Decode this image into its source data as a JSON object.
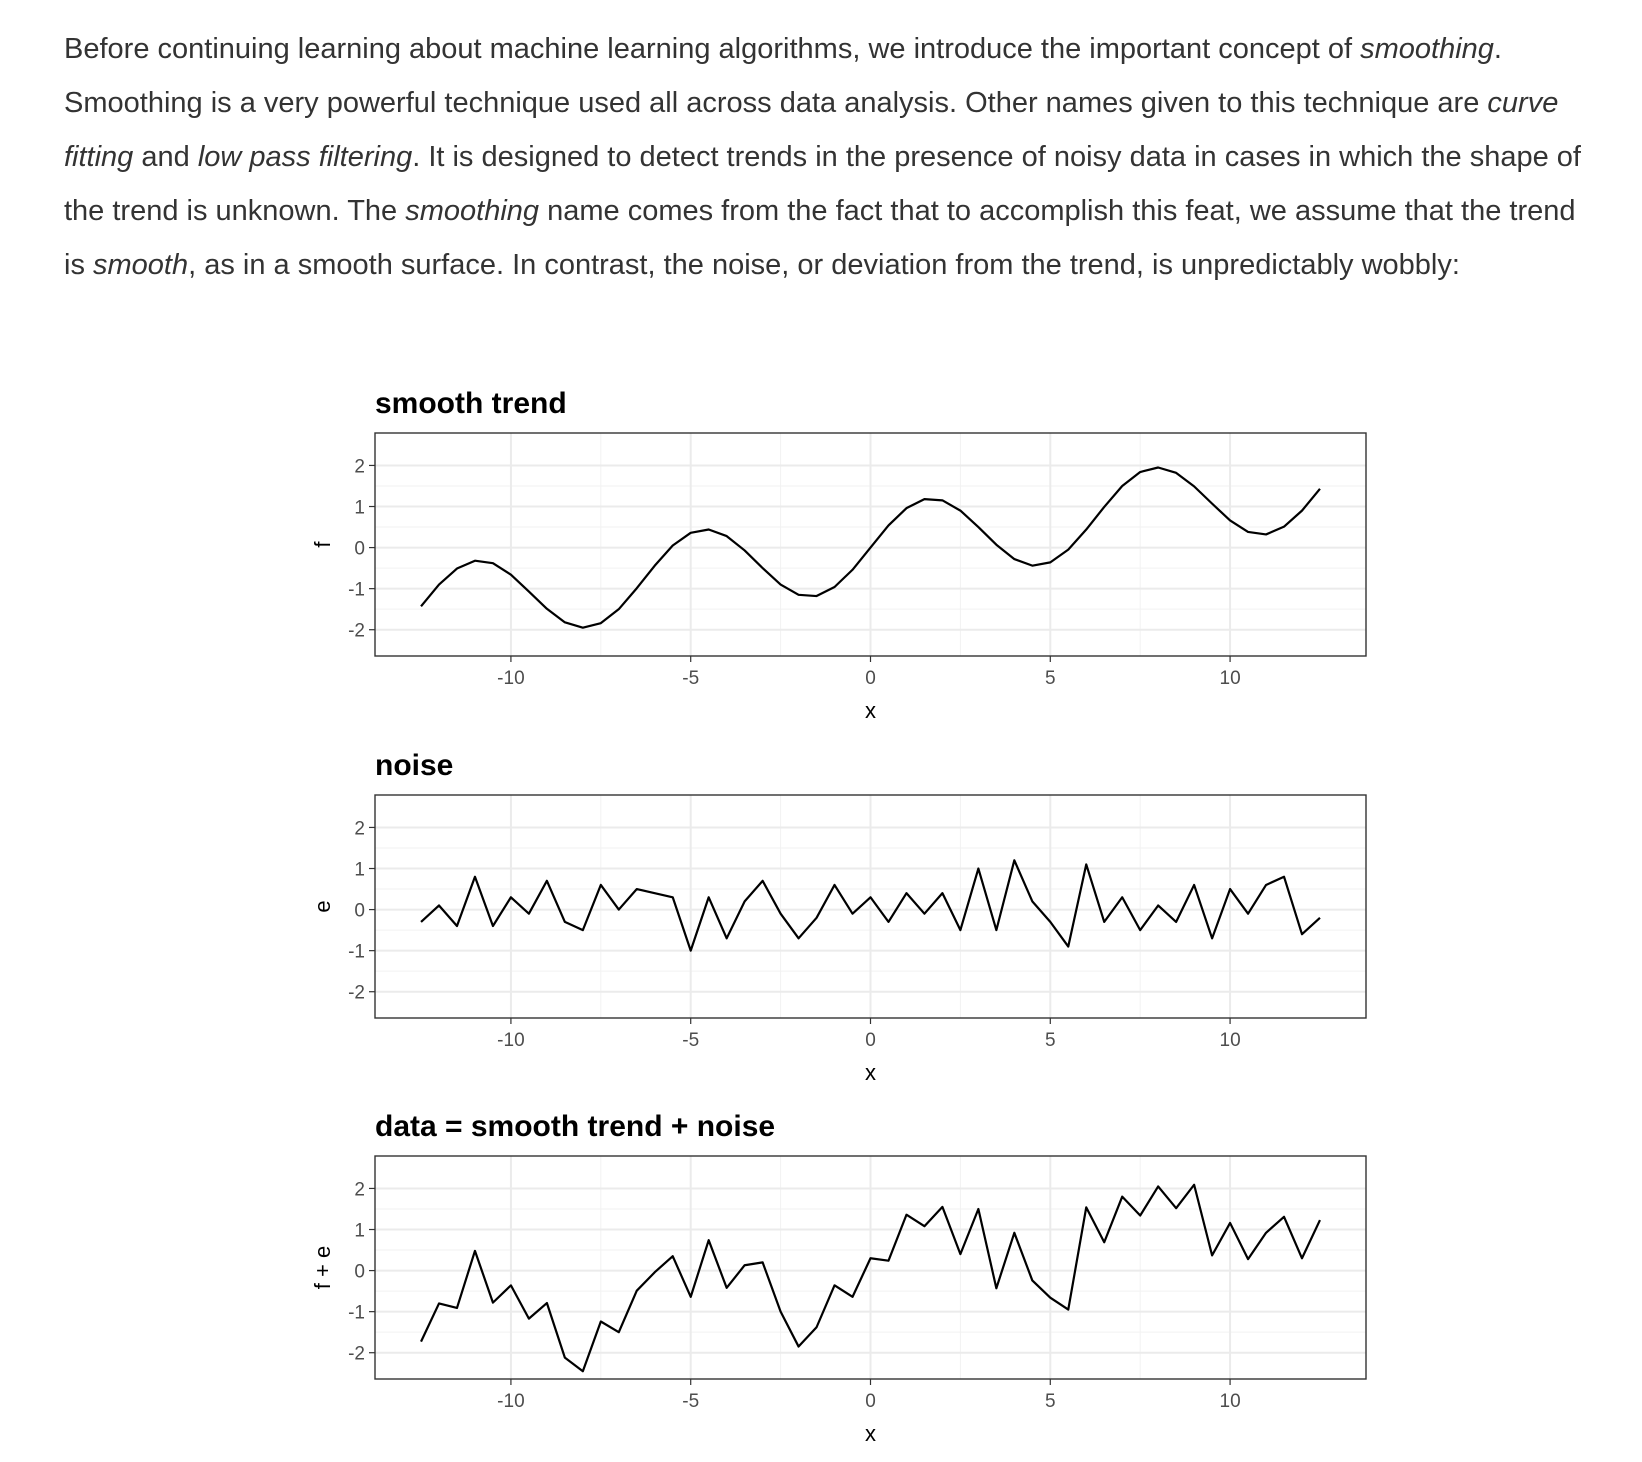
{
  "paragraph": [
    {
      "text": "Before continuing learning about machine learning algorithms, we introduce the important concept of ",
      "italic": false
    },
    {
      "text": "smoothing",
      "italic": true
    },
    {
      "text": ". Smoothing is a very powerful technique used all across data analysis. Other names given to this technique are ",
      "italic": false
    },
    {
      "text": "curve fitting",
      "italic": true
    },
    {
      "text": " and ",
      "italic": false
    },
    {
      "text": "low pass filtering",
      "italic": true
    },
    {
      "text": ". It is designed to detect trends in the presence of noisy data in cases in which the shape of the trend is unknown. The ",
      "italic": false
    },
    {
      "text": "smoothing",
      "italic": true
    },
    {
      "text": " name comes from the fact that to accomplish this feat, we assume that the trend is ",
      "italic": false
    },
    {
      "text": "smooth",
      "italic": true
    },
    {
      "text": ", as in a smooth surface. In contrast, the noise, or deviation from the trend, is unpredictably wobbly:",
      "italic": false
    }
  ],
  "chart_data": [
    {
      "type": "line",
      "title": "smooth trend",
      "x_label": "x",
      "y_label": "f",
      "color": "#000000",
      "grid": true,
      "x": [
        -12.5,
        -12,
        -11.5,
        -11,
        -10.5,
        -10,
        -9.5,
        -9,
        -8.5,
        -8,
        -7.5,
        -7,
        -6.5,
        -6,
        -5.5,
        -5,
        -4.5,
        -4,
        -3.5,
        -3,
        -2.5,
        -2,
        -1.5,
        -1,
        -0.5,
        0,
        0.5,
        1,
        1.5,
        2,
        2.5,
        3,
        3.5,
        4,
        4.5,
        5,
        5.5,
        6,
        6.5,
        7,
        7.5,
        8,
        8.5,
        9,
        9.5,
        10,
        10.5,
        11,
        11.5,
        12,
        12.5
      ],
      "values": [
        -1.43,
        -0.9,
        -0.51,
        -0.32,
        -0.38,
        -0.66,
        -1.07,
        -1.49,
        -1.82,
        -1.95,
        -1.84,
        -1.5,
        -0.99,
        -0.44,
        0.05,
        0.36,
        0.44,
        0.28,
        -0.07,
        -0.5,
        -0.9,
        -1.15,
        -1.18,
        -0.96,
        -0.54,
        0,
        0.54,
        0.96,
        1.18,
        1.15,
        0.9,
        0.5,
        0.07,
        -0.28,
        -0.44,
        -0.36,
        -0.05,
        0.44,
        0.99,
        1.5,
        1.84,
        1.95,
        1.82,
        1.49,
        1.07,
        0.66,
        0.38,
        0.32,
        0.51,
        0.9,
        1.43
      ],
      "xlim": [
        -13.78,
        13.78
      ],
      "xticks": [
        -10,
        -5,
        0,
        5,
        10
      ],
      "ylim": [
        -2.64,
        2.79
      ],
      "yticks": [
        -2,
        -1,
        0,
        1,
        2
      ]
    },
    {
      "type": "line",
      "title": "noise",
      "x_label": "x",
      "y_label": "e",
      "color": "#000000",
      "grid": true,
      "x": [
        -12.5,
        -12,
        -11.5,
        -11,
        -10.5,
        -10,
        -9.5,
        -9,
        -8.5,
        -8,
        -7.5,
        -7,
        -6.5,
        -6,
        -5.5,
        -5,
        -4.5,
        -4,
        -3.5,
        -3,
        -2.5,
        -2,
        -1.5,
        -1,
        -0.5,
        0,
        0.5,
        1,
        1.5,
        2,
        2.5,
        3,
        3.5,
        4,
        4.5,
        5,
        5.5,
        6,
        6.5,
        7,
        7.5,
        8,
        8.5,
        9,
        9.5,
        10,
        10.5,
        11,
        11.5,
        12,
        12.5
      ],
      "values": [
        -0.3,
        0.1,
        -0.4,
        0.8,
        -0.4,
        0.3,
        -0.1,
        0.7,
        -0.3,
        -0.5,
        0.6,
        0,
        0.5,
        0.4,
        0.3,
        -1.0,
        0.3,
        -0.7,
        0.2,
        0.7,
        -0.1,
        -0.7,
        -0.2,
        0.6,
        -0.1,
        0.3,
        -0.3,
        0.4,
        -0.1,
        0.4,
        -0.5,
        1.0,
        -0.5,
        1.2,
        0.2,
        -0.3,
        -0.9,
        1.1,
        -0.3,
        0.3,
        -0.5,
        0.1,
        -0.3,
        0.6,
        -0.7,
        0.5,
        -0.1,
        0.6,
        0.8,
        -0.6,
        -0.2
      ],
      "xlim": [
        -13.78,
        13.78
      ],
      "xticks": [
        -10,
        -5,
        0,
        5,
        10
      ],
      "ylim": [
        -2.64,
        2.79
      ],
      "yticks": [
        -2,
        -1,
        0,
        1,
        2
      ]
    },
    {
      "type": "line",
      "title": "data = smooth trend + noise",
      "x_label": "x",
      "y_label": "f + e",
      "color": "#000000",
      "grid": true,
      "x": [
        -12.5,
        -12,
        -11.5,
        -11,
        -10.5,
        -10,
        -9.5,
        -9,
        -8.5,
        -8,
        -7.5,
        -7,
        -6.5,
        -6,
        -5.5,
        -5,
        -4.5,
        -4,
        -3.5,
        -3,
        -2.5,
        -2,
        -1.5,
        -1,
        -0.5,
        0,
        0.5,
        1,
        1.5,
        2,
        2.5,
        3,
        3.5,
        4,
        4.5,
        5,
        5.5,
        6,
        6.5,
        7,
        7.5,
        8,
        8.5,
        9,
        9.5,
        10,
        10.5,
        11,
        11.5,
        12,
        12.5
      ],
      "values": [
        -1.73,
        -0.8,
        -0.91,
        0.48,
        -0.78,
        -0.36,
        -1.17,
        -0.79,
        -2.12,
        -2.45,
        -1.24,
        -1.5,
        -0.49,
        -0.04,
        0.35,
        -0.64,
        0.74,
        -0.42,
        0.13,
        0.2,
        -1.0,
        -1.85,
        -1.38,
        -0.36,
        -0.64,
        0.3,
        0.24,
        1.36,
        1.08,
        1.55,
        0.4,
        1.5,
        -0.43,
        0.92,
        -0.24,
        -0.66,
        -0.95,
        1.54,
        0.69,
        1.8,
        1.34,
        2.05,
        1.52,
        2.09,
        0.37,
        1.16,
        0.28,
        0.92,
        1.31,
        0.3,
        1.23
      ],
      "xlim": [
        -13.78,
        13.78
      ],
      "xticks": [
        -10,
        -5,
        0,
        5,
        10
      ],
      "ylim": [
        -2.64,
        2.79
      ],
      "yticks": [
        -2,
        -1,
        0,
        1,
        2
      ]
    }
  ]
}
